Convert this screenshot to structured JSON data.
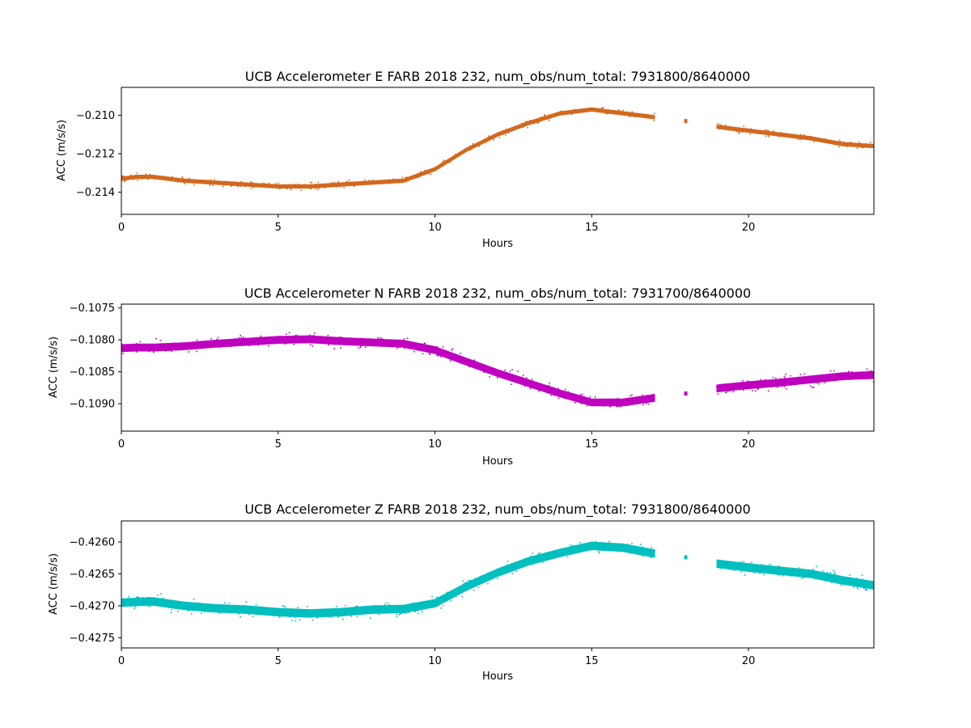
{
  "chart_data": [
    {
      "type": "scatter",
      "title": "UCB Accelerometer E FARB 2018 232, num_obs/num_total: 7931800/8640000",
      "xlabel": "Hours",
      "ylabel": "ACC (m/s/s)",
      "xlim": [
        0,
        24
      ],
      "ylim": [
        -0.21515,
        -0.20855
      ],
      "xticks": [
        0,
        5,
        10,
        15,
        20
      ],
      "xtick_labels": [
        "0",
        "5",
        "10",
        "15",
        "20"
      ],
      "yticks": [
        -0.214,
        -0.212,
        -0.21
      ],
      "ytick_labels": [
        "−0.214",
        "−0.212",
        "−0.210"
      ],
      "color": "#d2691e",
      "grid": false,
      "band_halfwidth": 9e-05,
      "noise_scale": 0.00025,
      "gaps": [
        [
          17.05,
          17.95
        ],
        [
          18.05,
          18.95
        ]
      ],
      "isolated_x": [
        18.0
      ],
      "trend_x": [
        0,
        0.5,
        1,
        2,
        3,
        4,
        5,
        6,
        7,
        8,
        9,
        10,
        11,
        12,
        13,
        14,
        15,
        16,
        17,
        18,
        19,
        20,
        21,
        22,
        23,
        24
      ],
      "trend_y": [
        -0.2133,
        -0.2132,
        -0.2132,
        -0.2134,
        -0.2135,
        -0.2136,
        -0.2137,
        -0.2137,
        -0.2136,
        -0.2135,
        -0.2134,
        -0.2128,
        -0.2118,
        -0.211,
        -0.2104,
        -0.2099,
        -0.2097,
        -0.2099,
        -0.2101,
        -0.2103,
        -0.2106,
        -0.2108,
        -0.211,
        -0.2112,
        -0.2115,
        -0.2116
      ]
    },
    {
      "type": "scatter",
      "title": "UCB Accelerometer N FARB 2018 232, num_obs/num_total: 7931700/8640000",
      "xlabel": "Hours",
      "ylabel": "ACC (m/s/s)",
      "xlim": [
        0,
        24
      ],
      "ylim": [
        -0.10943,
        -0.10744
      ],
      "xticks": [
        0,
        5,
        10,
        15,
        20
      ],
      "xtick_labels": [
        "0",
        "5",
        "10",
        "15",
        "20"
      ],
      "yticks": [
        -0.109,
        -0.1085,
        -0.108,
        -0.1075
      ],
      "ytick_labels": [
        "−0.1090",
        "−0.1085",
        "−0.1080",
        "−0.1075"
      ],
      "color": "#bf00bf",
      "grid": false,
      "band_halfwidth": 5.5e-05,
      "noise_scale": 0.00015,
      "gaps": [
        [
          17.05,
          17.95
        ],
        [
          18.05,
          18.95
        ]
      ],
      "isolated_x": [
        18.0
      ],
      "trend_x": [
        0,
        0.5,
        1,
        2,
        3,
        4,
        5,
        6,
        7,
        8,
        9,
        10,
        11,
        12,
        13,
        14,
        15,
        16,
        17,
        18,
        19,
        20,
        21,
        22,
        23,
        24
      ],
      "trend_y": [
        -0.10813,
        -0.10812,
        -0.10812,
        -0.1081,
        -0.10806,
        -0.10803,
        -0.108,
        -0.10799,
        -0.10802,
        -0.10804,
        -0.10806,
        -0.10816,
        -0.10834,
        -0.10852,
        -0.10868,
        -0.10884,
        -0.10898,
        -0.10898,
        -0.10891,
        -0.10884,
        -0.10876,
        -0.10871,
        -0.10867,
        -0.10862,
        -0.10857,
        -0.10855
      ]
    },
    {
      "type": "scatter",
      "title": "UCB Accelerometer Z FARB 2018 232, num_obs/num_total: 7931800/8640000",
      "xlabel": "Hours",
      "ylabel": "ACC (m/s/s)",
      "xlim": [
        0,
        24
      ],
      "ylim": [
        -0.42766,
        -0.42567
      ],
      "xticks": [
        0,
        5,
        10,
        15,
        20
      ],
      "xtick_labels": [
        "0",
        "5",
        "10",
        "15",
        "20"
      ],
      "yticks": [
        -0.4275,
        -0.427,
        -0.4265,
        -0.426
      ],
      "ytick_labels": [
        "−0.4275",
        "−0.4270",
        "−0.4265",
        "−0.4260"
      ],
      "color": "#00bfbf",
      "grid": false,
      "band_halfwidth": 6e-05,
      "noise_scale": 0.00016,
      "gaps": [
        [
          17.05,
          17.95
        ],
        [
          18.05,
          18.95
        ]
      ],
      "isolated_x": [
        18.0
      ],
      "trend_x": [
        0,
        0.5,
        1,
        2,
        3,
        4,
        5,
        6,
        7,
        8,
        9,
        10,
        11,
        12,
        13,
        14,
        15,
        16,
        17,
        18,
        19,
        20,
        21,
        22,
        23,
        24
      ],
      "trend_y": [
        -0.42695,
        -0.42694,
        -0.42693,
        -0.427,
        -0.42704,
        -0.42706,
        -0.4271,
        -0.42712,
        -0.4271,
        -0.42706,
        -0.42705,
        -0.42696,
        -0.4267,
        -0.42648,
        -0.4263,
        -0.42617,
        -0.42606,
        -0.42609,
        -0.42618,
        -0.42624,
        -0.42634,
        -0.4264,
        -0.42645,
        -0.4265,
        -0.4266,
        -0.42668
      ]
    }
  ]
}
